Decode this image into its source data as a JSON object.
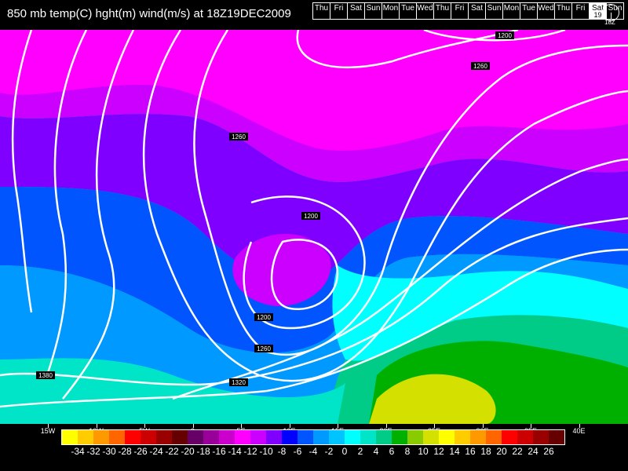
{
  "header": {
    "title": "850 mb temp(C) hght(m) wind(m/s) at 18Z19DEC2009"
  },
  "timeline": {
    "days": [
      {
        "label": "Thu"
      },
      {
        "label": "Fri"
      },
      {
        "label": "Sat"
      },
      {
        "label": "Sun"
      },
      {
        "label": "Mon"
      },
      {
        "label": "Tue"
      },
      {
        "label": "Wed"
      },
      {
        "label": "Thu"
      },
      {
        "label": "Fri"
      },
      {
        "label": "Sat"
      },
      {
        "label": "Sun"
      },
      {
        "label": "Mon"
      },
      {
        "label": "Tue"
      },
      {
        "label": "Wed"
      },
      {
        "label": "Thu"
      },
      {
        "label": "Fri"
      },
      {
        "label": "Sat",
        "date": "19",
        "selected": true
      },
      {
        "label": "Sun"
      }
    ],
    "hour_label": "18Z"
  },
  "map": {
    "longitudes": [
      "15W",
      "10W",
      "5W",
      "0",
      "5E",
      "10E",
      "15E",
      "20E",
      "25E",
      "30E",
      "35E",
      "40E"
    ],
    "contour_labels": [
      "1200",
      "1260",
      "1260",
      "1200",
      "1200",
      "1260",
      "1320",
      "1380"
    ]
  },
  "legend": {
    "colors": [
      "#ffff00",
      "#ffcc00",
      "#ff9900",
      "#ff6600",
      "#ff0000",
      "#cc0000",
      "#990000",
      "#660000",
      "#660066",
      "#990099",
      "#cc00cc",
      "#ff00ff",
      "#cc00ff",
      "#8000ff",
      "#0000ff",
      "#0055ff",
      "#0099ff",
      "#00c4ff",
      "#00ffff",
      "#00e5c8",
      "#00cc88",
      "#00b000",
      "#88cc00",
      "#d4e000",
      "#ffff00",
      "#ffcc00",
      "#ff9900",
      "#ff6600",
      "#ff0000",
      "#cc0000",
      "#990000",
      "#660000"
    ],
    "labels": [
      "-34",
      "-32",
      "-30",
      "-28",
      "-26",
      "-24",
      "-22",
      "-20",
      "-18",
      "-16",
      "-14",
      "-12",
      "-10",
      "-8",
      "-6",
      "-4",
      "-2",
      "0",
      "2",
      "4",
      "6",
      "8",
      "10",
      "12",
      "14",
      "16",
      "18",
      "20",
      "22",
      "24",
      "26"
    ]
  }
}
